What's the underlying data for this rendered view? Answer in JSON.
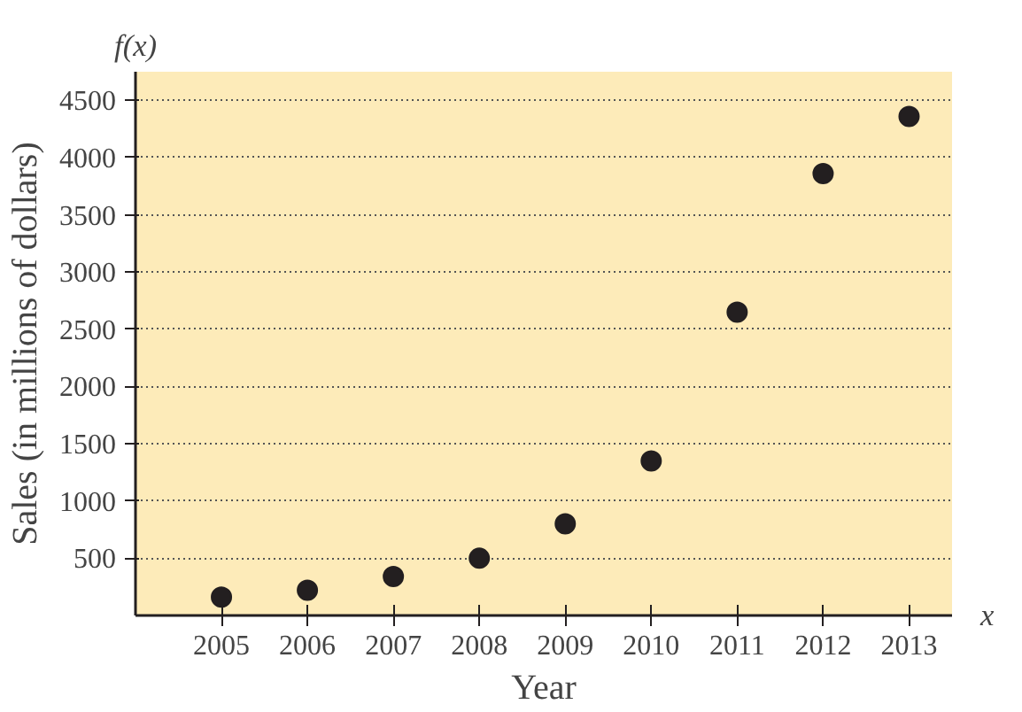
{
  "chart_data": {
    "type": "scatter",
    "xlabel": "Year",
    "ylabel": "Sales (in millions of dollars)",
    "annotations": [
      "f(x)",
      "x"
    ],
    "x": [
      2005,
      2006,
      2007,
      2008,
      2009,
      2010,
      2011,
      2012,
      2013
    ],
    "values": [
      160,
      220,
      340,
      500,
      800,
      1350,
      2650,
      3860,
      4360
    ],
    "color": "#231f20",
    "marker": "circle",
    "grid": "y",
    "xlim": [
      2004,
      2013.5
    ],
    "xticks": [
      2005,
      2006,
      2007,
      2008,
      2009,
      2010,
      2011,
      2012,
      2013
    ],
    "ylim": [
      0,
      4750
    ],
    "yticks": [
      500,
      1000,
      1500,
      2000,
      2500,
      3000,
      3500,
      4000,
      4500
    ]
  }
}
